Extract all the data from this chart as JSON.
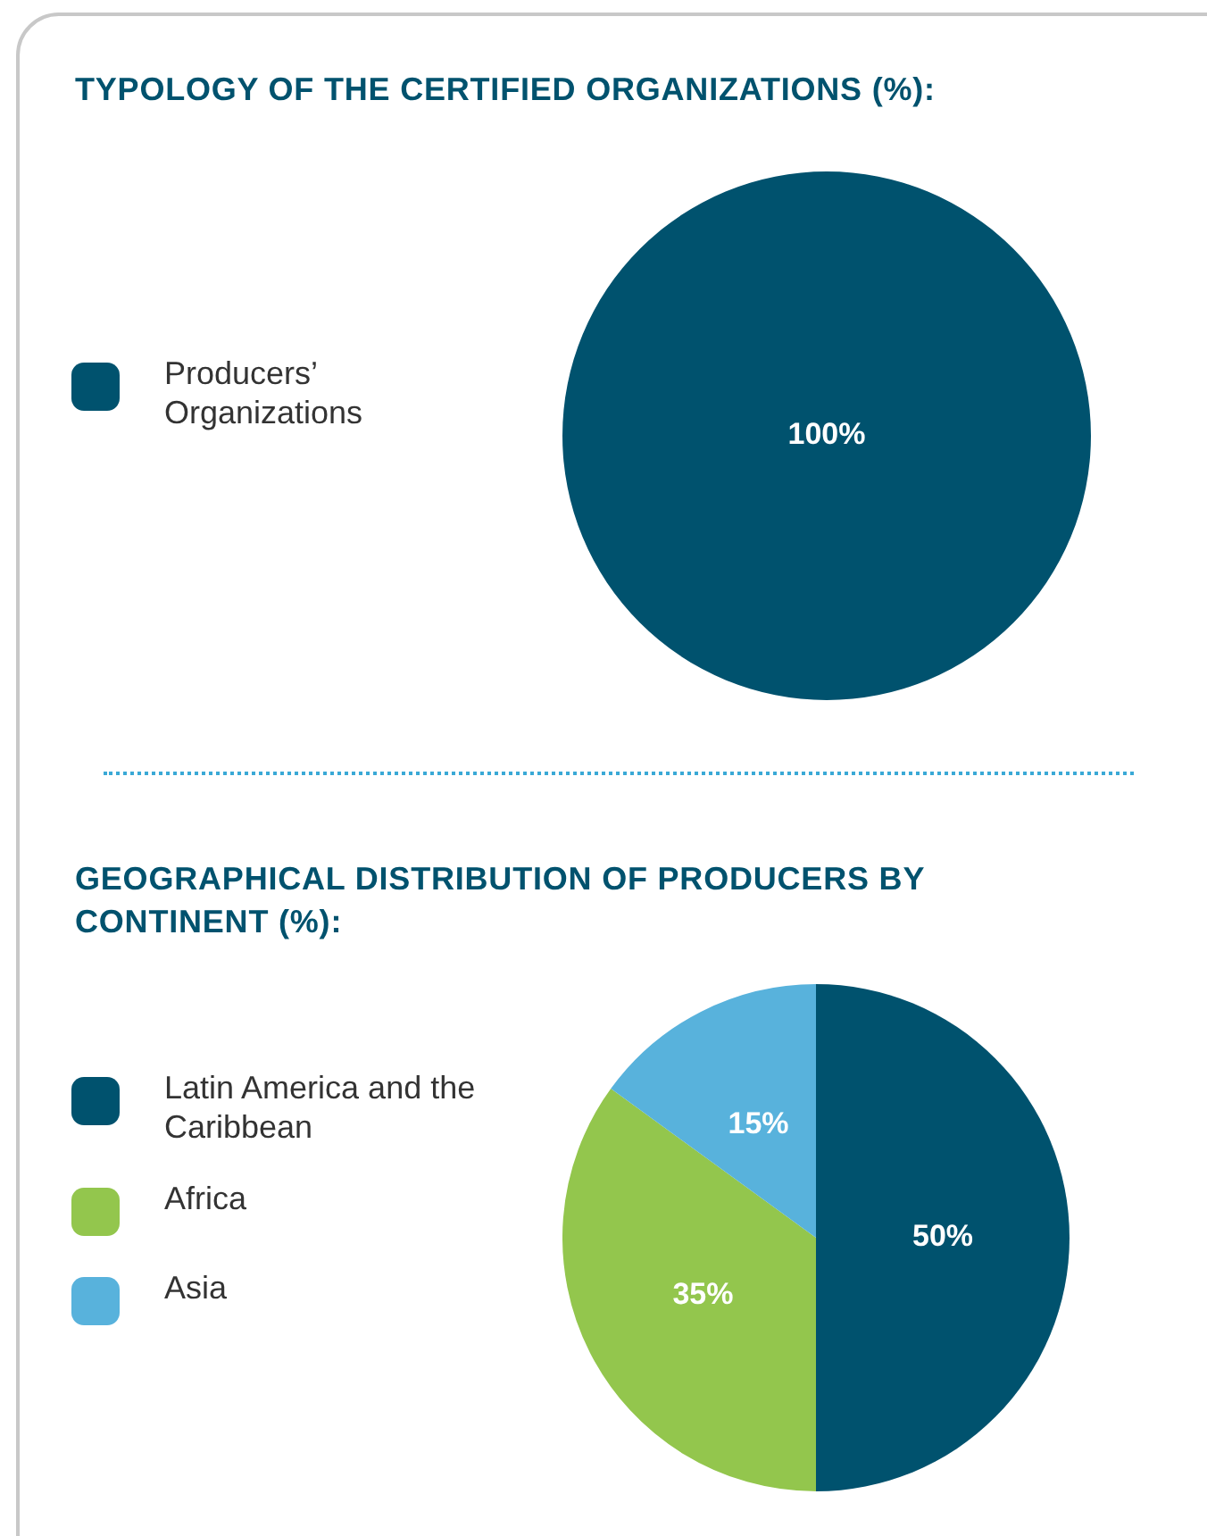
{
  "chart_data": [
    {
      "type": "pie",
      "title": "TYPOLOGY OF THE CERTIFIED ORGANIZATIONS (%):",
      "categories": [
        "Producers’ Organizations"
      ],
      "values": [
        100
      ],
      "colors": [
        "#00526e"
      ],
      "value_labels": [
        "100%"
      ],
      "legend": "left"
    },
    {
      "type": "pie",
      "title": "GEOGRAPHICAL DISTRIBUTION OF PRODUCERS BY CONTINENT (%):",
      "categories": [
        "Latin America and the Caribbean",
        "Africa",
        "Asia"
      ],
      "values": [
        50,
        35,
        15
      ],
      "colors": [
        "#00526e",
        "#93c64d",
        "#58b2dc"
      ],
      "value_labels": [
        "50%",
        "35%",
        "15%"
      ],
      "legend": "left"
    }
  ]
}
